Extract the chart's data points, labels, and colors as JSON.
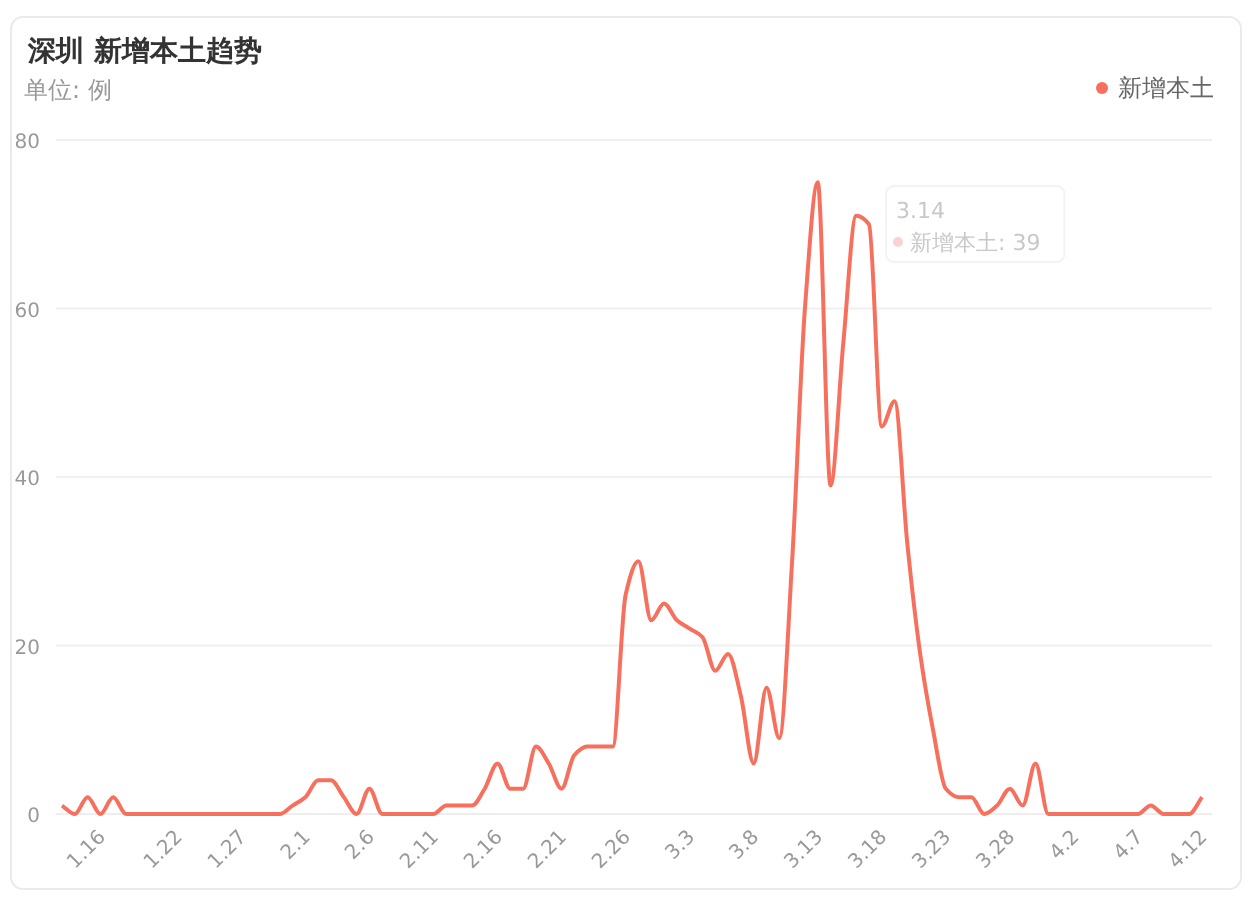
{
  "chart_data": {
    "type": "line",
    "title": "深圳 新增本土趋势",
    "subtitle": "单位: 例",
    "categories": [
      null,
      null,
      null,
      "1.16",
      null,
      null,
      null,
      null,
      null,
      "1.22",
      null,
      null,
      null,
      null,
      "1.27",
      null,
      null,
      null,
      null,
      "2.1",
      null,
      null,
      null,
      null,
      "2.6",
      null,
      null,
      null,
      null,
      "2.11",
      null,
      null,
      null,
      null,
      "2.16",
      null,
      null,
      null,
      null,
      "2.21",
      null,
      null,
      null,
      null,
      "2.26",
      null,
      null,
      null,
      null,
      "3.3",
      null,
      null,
      null,
      null,
      "3.8",
      null,
      null,
      null,
      null,
      "3.13",
      null,
      null,
      null,
      null,
      "3.18",
      null,
      null,
      null,
      null,
      "3.23",
      null,
      null,
      null,
      null,
      "3.28",
      null,
      null,
      null,
      null,
      "4.2",
      null,
      null,
      null,
      null,
      "4.7",
      null,
      null,
      null,
      null,
      "4.12"
    ],
    "series": [
      {
        "name": "新增本土",
        "color": "#f7705e",
        "values": [
          1,
          0,
          2,
          0,
          2,
          0,
          0,
          0,
          0,
          0,
          0,
          0,
          0,
          0,
          0,
          0,
          0,
          0,
          1,
          2,
          4,
          4,
          2,
          0,
          3,
          0,
          0,
          0,
          0,
          0,
          1,
          1,
          1,
          3,
          6,
          3,
          3,
          8,
          6,
          3,
          7,
          8,
          8,
          8,
          26,
          30,
          23,
          25,
          23,
          22,
          21,
          17,
          19,
          14,
          6,
          15,
          9,
          30,
          60,
          75,
          39,
          56,
          71,
          70,
          46,
          49,
          32,
          19,
          10,
          3,
          2,
          2,
          0,
          1,
          3,
          1,
          6,
          0,
          0,
          0,
          0,
          0,
          0,
          0,
          0,
          1,
          0,
          0,
          0,
          2
        ]
      }
    ],
    "ylim": [
      0,
      80
    ],
    "yticks": [
      0,
      20,
      40,
      60,
      80
    ],
    "grid": "y",
    "legend": "top right",
    "marker": "none",
    "annotations": [
      "3.14",
      "新增本土: 39"
    ]
  }
}
